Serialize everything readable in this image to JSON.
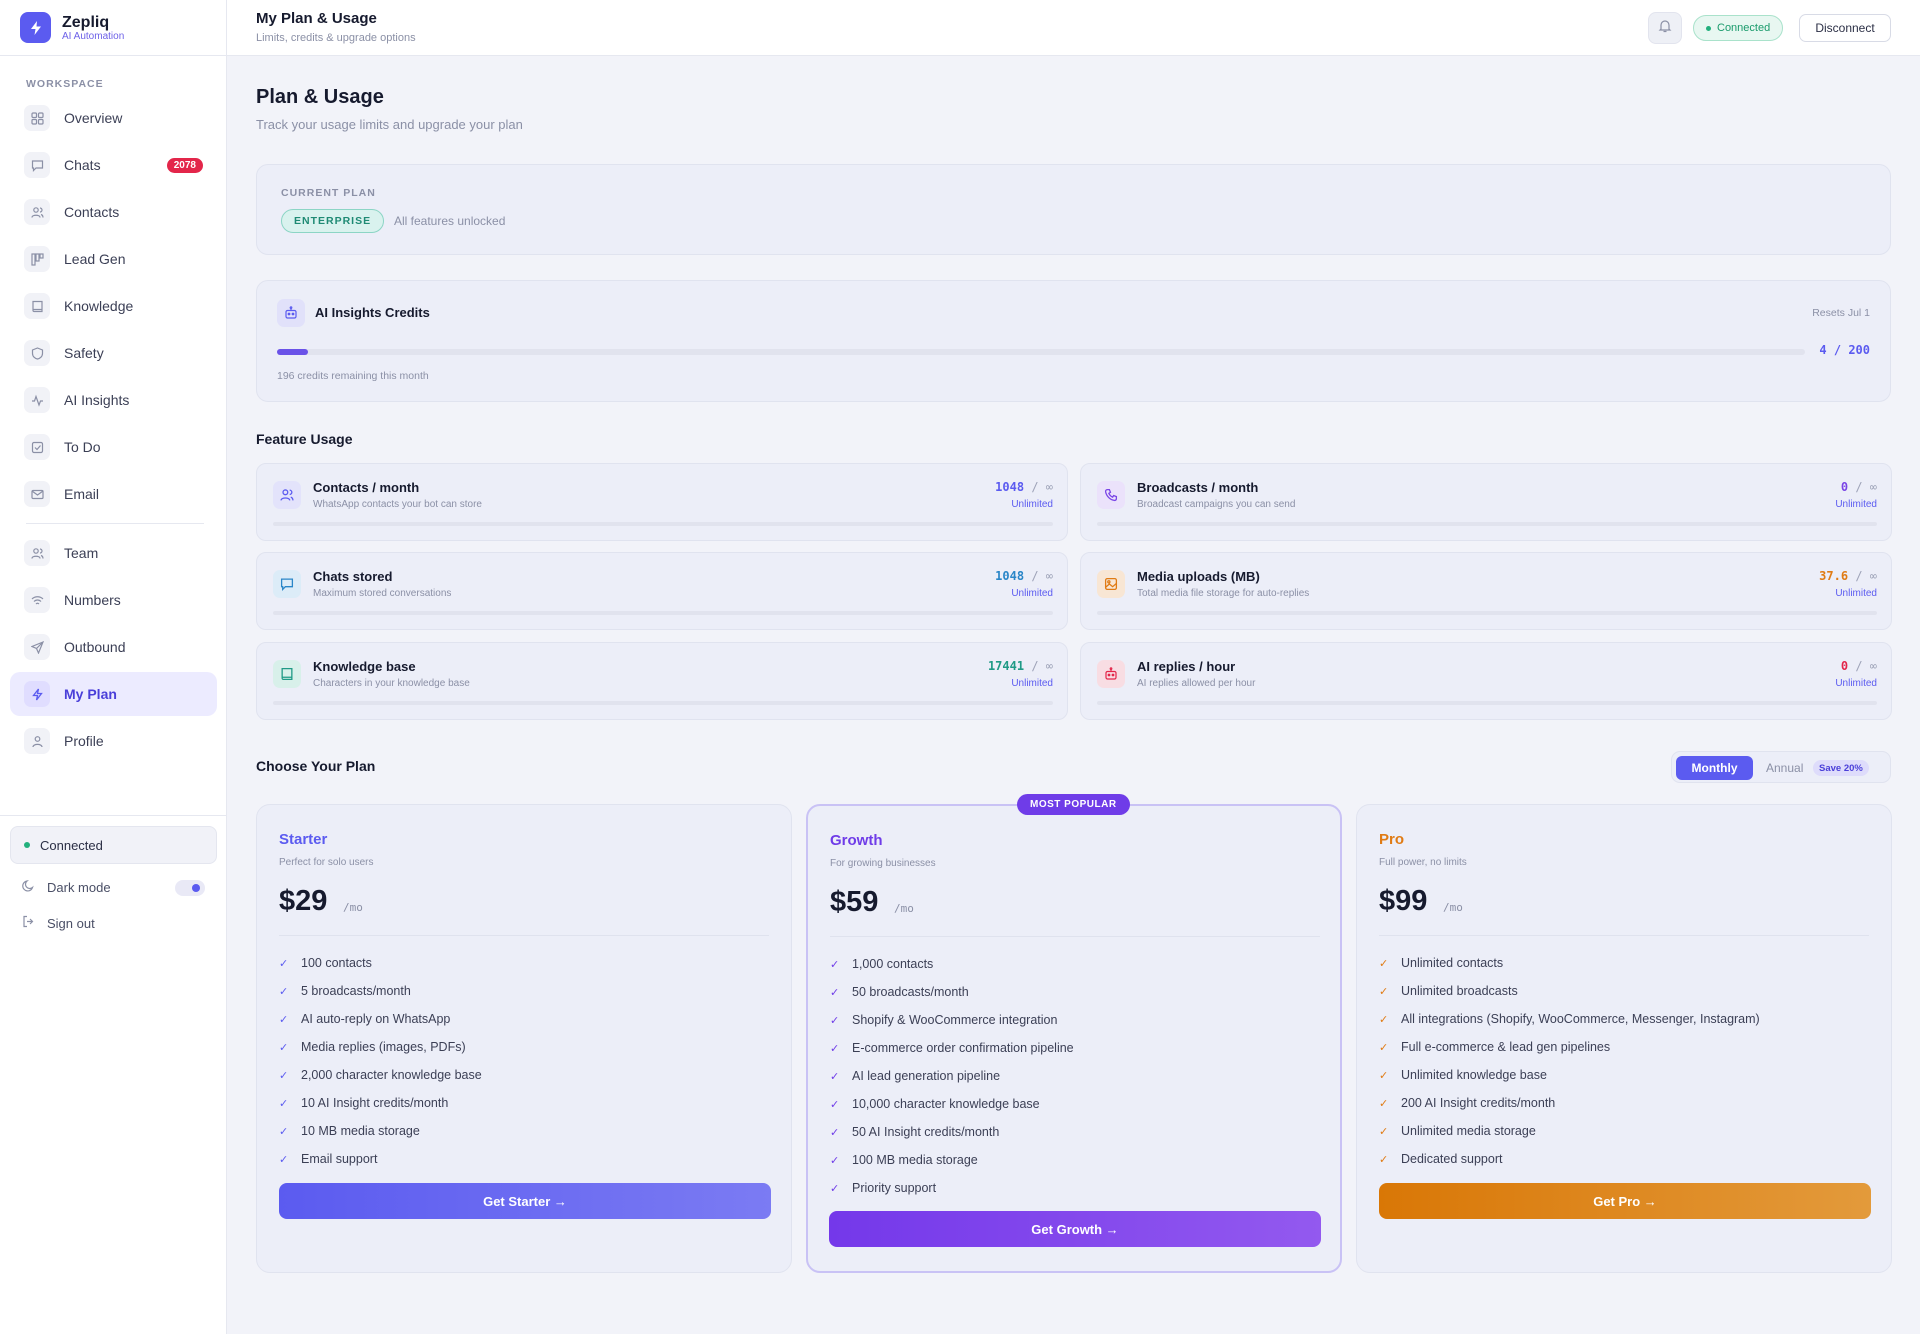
{
  "brand": {
    "name": "Zepliq",
    "subtitle": "AI Automation"
  },
  "sidebar": {
    "section_label": "WORKSPACE",
    "items": [
      {
        "label": "Overview",
        "icon": "grid-icon"
      },
      {
        "label": "Chats",
        "icon": "chat-icon",
        "badge": "2078"
      },
      {
        "label": "Contacts",
        "icon": "users-icon"
      },
      {
        "label": "Lead Gen",
        "icon": "kanban-icon"
      },
      {
        "label": "Knowledge",
        "icon": "book-icon"
      },
      {
        "label": "Safety",
        "icon": "shield-icon"
      },
      {
        "label": "AI Insights",
        "icon": "pulse-icon"
      },
      {
        "label": "To Do",
        "icon": "checkbox-icon"
      },
      {
        "label": "Email",
        "icon": "mail-icon"
      },
      {
        "label": "Team",
        "icon": "users-icon"
      },
      {
        "label": "Numbers",
        "icon": "wifi-icon"
      },
      {
        "label": "Outbound",
        "icon": "send-icon"
      },
      {
        "label": "My Plan",
        "icon": "bolt-icon",
        "active": true
      },
      {
        "label": "Profile",
        "icon": "user-icon"
      }
    ],
    "status": "Connected",
    "dark_mode_label": "Dark mode",
    "sign_out_label": "Sign out"
  },
  "header": {
    "title": "My Plan & Usage",
    "subtitle": "Limits, credits & upgrade options",
    "status": "Connected",
    "disconnect_label": "Disconnect"
  },
  "page": {
    "title": "Plan & Usage",
    "subtitle": "Track your usage limits and upgrade your plan"
  },
  "current_plan": {
    "label": "CURRENT PLAN",
    "badge": "ENTERPRISE",
    "note": "All features unlocked"
  },
  "ai_credits": {
    "title": "AI Insights Credits",
    "reset": "Resets Jul 1",
    "used": 4,
    "total": 200,
    "count_label": "4 / 200",
    "remaining": "196 credits remaining this month"
  },
  "feature_usage": {
    "title": "Feature Usage",
    "unlimited_label": "Unlimited",
    "limit_symbol": "∞",
    "items": [
      {
        "title": "Contacts / month",
        "subtitle": "WhatsApp contacts your bot can store",
        "value": "1048",
        "color": "#5b5bf0",
        "icon": "users-icon"
      },
      {
        "title": "Broadcasts / month",
        "subtitle": "Broadcast campaigns you can send",
        "value": "0",
        "color": "#7a45e6",
        "icon": "phone-icon"
      },
      {
        "title": "Chats stored",
        "subtitle": "Maximum stored conversations",
        "value": "1048",
        "color": "#2a86c8",
        "icon": "chat-icon"
      },
      {
        "title": "Media uploads (MB)",
        "subtitle": "Total media file storage for auto-replies",
        "value": "37.6",
        "color": "#e07b14",
        "icon": "image-icon"
      },
      {
        "title": "Knowledge base",
        "subtitle": "Characters in your knowledge base",
        "value": "17441",
        "color": "#1f9a86",
        "icon": "book-icon"
      },
      {
        "title": "AI replies / hour",
        "subtitle": "AI replies allowed per hour",
        "value": "0",
        "color": "#e3264a",
        "icon": "robot-icon"
      }
    ]
  },
  "plans_section": {
    "title": "Choose Your Plan",
    "monthly_label": "Monthly",
    "annual_label": "Annual",
    "save_label": "Save 20%",
    "popular_label": "MOST POPULAR",
    "per_label": "/mo"
  },
  "plans": [
    {
      "name": "Starter",
      "desc": "Perfect for solo users",
      "price": "$29",
      "color": "#5b5bf0",
      "features": [
        "100 contacts",
        "5 broadcasts/month",
        "AI auto-reply on WhatsApp",
        "Media replies (images, PDFs)",
        "2,000 character knowledge base",
        "10 AI Insight credits/month",
        "10 MB media storage",
        "Email support"
      ],
      "cta": "Get Starter →"
    },
    {
      "name": "Growth",
      "desc": "For growing businesses",
      "price": "$59",
      "color": "#6f3ce8",
      "features": [
        "1,000 contacts",
        "50 broadcasts/month",
        "Shopify & WooCommerce integration",
        "E-commerce order confirmation pipeline",
        "AI lead generation pipeline",
        "10,000 character knowledge base",
        "50 AI Insight credits/month",
        "100 MB media storage",
        "Priority support"
      ],
      "cta": "Get Growth →"
    },
    {
      "name": "Pro",
      "desc": "Full power, no limits",
      "price": "$99",
      "color": "#e07b14",
      "features": [
        "Unlimited contacts",
        "Unlimited broadcasts",
        "All integrations (Shopify, WooCommerce, Messenger, Instagram)",
        "Full e-commerce & lead gen pipelines",
        "Unlimited knowledge base",
        "200 AI Insight credits/month",
        "Unlimited media storage",
        "Dedicated support"
      ],
      "cta": "Get Pro →"
    }
  ]
}
